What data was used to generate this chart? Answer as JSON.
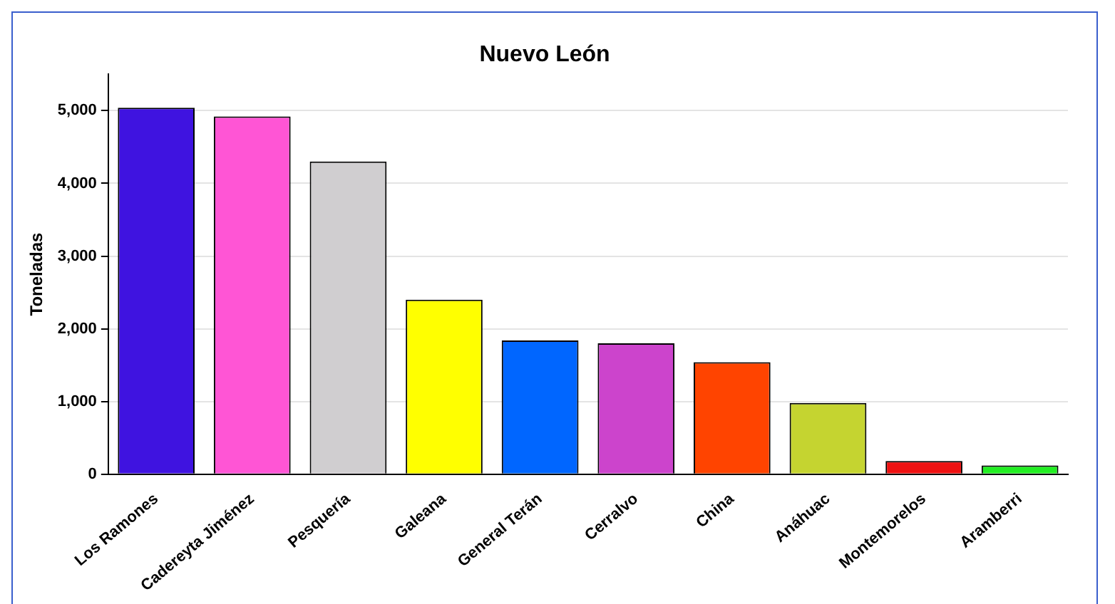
{
  "chart_data": {
    "type": "bar",
    "title": "Nuevo León",
    "ylabel": "Toneladas",
    "categories": [
      "Los Ramones",
      "Cadereyta Jiménez",
      "Pesquería",
      "Galeana",
      "General Terán",
      "Cerralvo",
      "China",
      "Anáhuac",
      "Montemorelos",
      "Aramberri"
    ],
    "values": [
      5040,
      4920,
      4300,
      2400,
      1840,
      1800,
      1540,
      980,
      180,
      120
    ],
    "colors": [
      "#3f13e0",
      "#ff55d5",
      "#d0ced0",
      "#ffff00",
      "#0066ff",
      "#cc44cc",
      "#ff4400",
      "#c5d430",
      "#ee1111",
      "#22ee22"
    ],
    "ylim": [
      0,
      5500
    ],
    "yticks": [
      {
        "value": 0,
        "label": "0"
      },
      {
        "value": 1000,
        "label": "1,000"
      },
      {
        "value": 2000,
        "label": "2,000"
      },
      {
        "value": 3000,
        "label": "3,000"
      },
      {
        "value": 4000,
        "label": "4,000"
      },
      {
        "value": 5000,
        "label": "5,000"
      }
    ],
    "grid": "y",
    "legend": false
  }
}
